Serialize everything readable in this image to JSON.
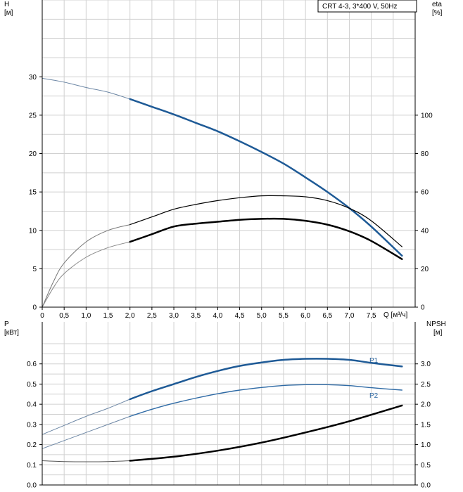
{
  "chart_data": [
    {
      "type": "line",
      "panel": "top",
      "legend": "CRT 4-3, 3*400 V, 50Hz",
      "legend_placement": "top-right",
      "xlabel": "Q [м³/ч]",
      "x_ticks": [
        "0",
        "0,5",
        "1,0",
        "1,5",
        "2,0",
        "2,5",
        "3,0",
        "3,5",
        "4,0",
        "4,5",
        "5,0",
        "5,5",
        "6,0",
        "6,5",
        "7,0",
        "7,5"
      ],
      "xlim": [
        0,
        8.5
      ],
      "y_left": {
        "label_line1": "H",
        "label_line2": "[м]",
        "ticks": [
          0,
          5,
          10,
          15,
          20,
          25,
          30
        ],
        "lim": [
          0,
          40
        ]
      },
      "y_right": {
        "label_line1": "eta",
        "label_line2": "[%]",
        "ticks": [
          0,
          20,
          40,
          60,
          80,
          100
        ],
        "lim": [
          0,
          160
        ]
      },
      "grid": true,
      "series": [
        {
          "axis": "left",
          "color": "#6d87a5",
          "width": 1,
          "x": [
            0,
            0.5,
            1.0,
            1.5,
            2.0
          ],
          "y": [
            29.8,
            29.3,
            28.6,
            28.0,
            27.1
          ]
        },
        {
          "axis": "left",
          "color": "#1e5a96",
          "width": 2.5,
          "x": [
            2.0,
            2.5,
            3.0,
            3.5,
            4.0,
            4.5,
            5.0,
            5.5,
            6.0,
            6.5,
            7.0,
            7.5,
            8.2
          ],
          "y": [
            27.1,
            26.1,
            25.1,
            24.0,
            22.9,
            21.6,
            20.2,
            18.7,
            16.9,
            15.0,
            12.9,
            10.5,
            6.7
          ]
        },
        {
          "axis": "right",
          "color": "#777777",
          "width": 1,
          "x": [
            0,
            0.25,
            0.5,
            1.0,
            1.5,
            2.0
          ],
          "y": [
            0,
            13,
            23,
            34,
            40,
            43
          ]
        },
        {
          "axis": "right",
          "color": "#000000",
          "width": 1.2,
          "x": [
            2.0,
            2.5,
            3.0,
            3.5,
            4.0,
            4.5,
            5.0,
            5.5,
            6.0,
            6.5,
            7.0,
            7.5,
            8.2
          ],
          "y": [
            43,
            47,
            51,
            53.5,
            55.5,
            57,
            58,
            58,
            57.5,
            55.5,
            51.5,
            45,
            31.5
          ]
        },
        {
          "axis": "right",
          "color": "#888888",
          "width": 1,
          "x": [
            0,
            0.25,
            0.5,
            1.0,
            1.5,
            2.0
          ],
          "y": [
            0,
            10,
            17.5,
            26,
            31,
            34
          ]
        },
        {
          "axis": "right",
          "color": "#000000",
          "width": 2.5,
          "x": [
            2.0,
            2.5,
            3.0,
            3.5,
            4.0,
            4.5,
            5.0,
            5.5,
            6.0,
            6.5,
            7.0,
            7.5,
            8.2
          ],
          "y": [
            34,
            38,
            42,
            43.5,
            44.5,
            45.5,
            46,
            46,
            45,
            43,
            39.5,
            34.5,
            25
          ]
        }
      ]
    },
    {
      "type": "line",
      "panel": "bottom",
      "y_left": {
        "label_line1": "P",
        "label_line2": "[кВт]",
        "ticks": [
          "0.0",
          "0.1",
          "0.2",
          "0.3",
          "0.4",
          "0.5",
          "0.6"
        ],
        "lim": [
          0,
          0.7
        ]
      },
      "y_right": {
        "label_line1": "NPSH",
        "label_line2": "[м]",
        "ticks": [
          "0.0",
          "0.5",
          "1.0",
          "1.5",
          "2.0",
          "2.5",
          "3.0"
        ],
        "lim": [
          0,
          3.5
        ]
      },
      "xlim": [
        0,
        8.5
      ],
      "grid": true,
      "series": [
        {
          "axis": "left",
          "color": "#6d87a5",
          "width": 1,
          "x": [
            0,
            0.5,
            1.0,
            1.5,
            2.0
          ],
          "y": [
            0.25,
            0.295,
            0.34,
            0.38,
            0.425
          ]
        },
        {
          "name": "P1",
          "axis": "left",
          "color": "#1e5a96",
          "width": 2.5,
          "x": [
            2.0,
            2.5,
            3.0,
            3.5,
            4.0,
            4.5,
            5.0,
            5.5,
            6.0,
            6.5,
            7.0,
            7.5,
            8.2
          ],
          "y": [
            0.425,
            0.465,
            0.5,
            0.535,
            0.565,
            0.59,
            0.607,
            0.62,
            0.625,
            0.625,
            0.62,
            0.605,
            0.587
          ]
        },
        {
          "axis": "left",
          "color": "#6d87a5",
          "width": 1,
          "x": [
            0,
            0.5,
            1.0,
            1.5,
            2.0
          ],
          "y": [
            0.18,
            0.22,
            0.26,
            0.3,
            0.34
          ]
        },
        {
          "name": "P2",
          "axis": "left",
          "color": "#2e6aa5",
          "width": 1.4,
          "x": [
            2.0,
            2.5,
            3.0,
            3.5,
            4.0,
            4.5,
            5.0,
            5.5,
            6.0,
            6.5,
            7.0,
            7.5,
            8.2
          ],
          "y": [
            0.34,
            0.375,
            0.405,
            0.43,
            0.452,
            0.47,
            0.483,
            0.493,
            0.497,
            0.497,
            0.492,
            0.482,
            0.47
          ]
        },
        {
          "axis": "right",
          "color": "#555555",
          "width": 1,
          "x": [
            0,
            0.5,
            1.0,
            1.5,
            2.0
          ],
          "y": [
            0.6,
            0.58,
            0.575,
            0.58,
            0.6
          ]
        },
        {
          "axis": "right",
          "color": "#000000",
          "width": 2.5,
          "x": [
            2.0,
            3.0,
            4.0,
            5.0,
            6.0,
            7.0,
            8.2
          ],
          "y": [
            0.6,
            0.7,
            0.85,
            1.05,
            1.3,
            1.58,
            1.97
          ]
        }
      ]
    }
  ]
}
